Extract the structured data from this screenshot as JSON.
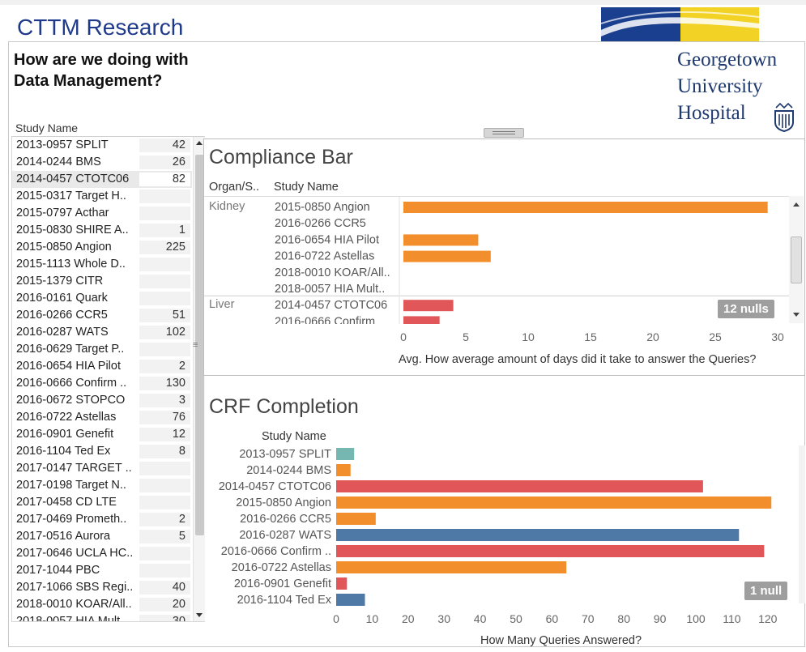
{
  "header": {
    "title": "CTTM Research",
    "question": "How are we doing with Data Management?",
    "logo_lines": [
      "Georgetown",
      "University",
      "Hospital"
    ]
  },
  "colors": {
    "orange": "#f28e2b",
    "red": "#e15759",
    "blue": "#4e79a7",
    "teal": "#76b7b2",
    "brand_navy": "#1f3a8a"
  },
  "study_list": {
    "header": "Study Name",
    "rows": [
      {
        "name": "2013-0957 SPLIT",
        "count": "42"
      },
      {
        "name": "2014-0244 BMS",
        "count": "26"
      },
      {
        "name": "2014-0457 CTOTC06",
        "count": "82"
      },
      {
        "name": "2015-0317 Target H..",
        "count": ""
      },
      {
        "name": "2015-0797 Acthar",
        "count": ""
      },
      {
        "name": "2015-0830 SHIRE A..",
        "count": "1"
      },
      {
        "name": "2015-0850 Angion",
        "count": "225"
      },
      {
        "name": "2015-1113 Whole D..",
        "count": ""
      },
      {
        "name": "2015-1379 CITR",
        "count": ""
      },
      {
        "name": "2016-0161 Quark",
        "count": ""
      },
      {
        "name": "2016-0266 CCR5",
        "count": "51"
      },
      {
        "name": "2016-0287 WATS",
        "count": "102"
      },
      {
        "name": "2016-0629 Target P..",
        "count": ""
      },
      {
        "name": "2016-0654 HIA Pilot",
        "count": "2"
      },
      {
        "name": "2016-0666 Confirm ..",
        "count": "130"
      },
      {
        "name": "2016-0672 STOPCO",
        "count": "3"
      },
      {
        "name": "2016-0722 Astellas",
        "count": "76"
      },
      {
        "name": "2016-0901 Genefit",
        "count": "12"
      },
      {
        "name": "2016-1104 Ted Ex",
        "count": "8"
      },
      {
        "name": "2017-0147 TARGET ..",
        "count": ""
      },
      {
        "name": "2017-0198 Target N..",
        "count": ""
      },
      {
        "name": "2017-0458 CD LTE",
        "count": ""
      },
      {
        "name": "2017-0469 Prometh..",
        "count": "2"
      },
      {
        "name": "2017-0516 Aurora",
        "count": "5"
      },
      {
        "name": "2017-0646 UCLA HC..",
        "count": ""
      },
      {
        "name": "2017-1044  PBC",
        "count": ""
      },
      {
        "name": "2017-1066 SBS Regi..",
        "count": "40"
      },
      {
        "name": "2018-0010 KOAR/All..",
        "count": "20"
      },
      {
        "name": "2018-0057 HIA Mult..",
        "count": "30"
      }
    ]
  },
  "compliance": {
    "title": "Compliance Bar",
    "col_headers": [
      "Organ/S..",
      "Study Name"
    ],
    "null_badge": "12 nulls",
    "axis_title": "Avg. How average amount of days did it take to answer the Queries?",
    "chart_data": {
      "type": "bar",
      "orientation": "horizontal",
      "xlim": [
        0,
        30
      ],
      "ticks": [
        "0",
        "5",
        "10",
        "15",
        "20",
        "25",
        "30"
      ],
      "groups": [
        {
          "name": "Kidney",
          "rows": [
            {
              "study": "2015-0850 Angion",
              "value": 29.2,
              "color": "orange"
            },
            {
              "study": "2016-0266 CCR5",
              "value": null,
              "color": "orange"
            },
            {
              "study": "2016-0654 HIA Pilot",
              "value": 6.0,
              "color": "orange"
            },
            {
              "study": "2016-0722 Astellas",
              "value": 7.0,
              "color": "orange"
            },
            {
              "study": "2018-0010 KOAR/All..",
              "value": null,
              "color": "orange"
            },
            {
              "study": "2018-0057 HIA Mult..",
              "value": null,
              "color": "orange"
            }
          ]
        },
        {
          "name": "Liver",
          "rows": [
            {
              "study": "2014-0457 CTOTC06",
              "value": 4.0,
              "color": "red"
            },
            {
              "study": "2016-0666 Confirm",
              "value": 2.9,
              "color": "red"
            }
          ]
        }
      ]
    }
  },
  "crf": {
    "title": "CRF Completion",
    "col_header": "Study Name",
    "null_badge": "1 null",
    "axis_title": "How Many Queries Answered?",
    "chart_data": {
      "type": "bar",
      "orientation": "horizontal",
      "xlim": [
        0,
        125
      ],
      "ticks": [
        "0",
        "10",
        "20",
        "30",
        "40",
        "50",
        "60",
        "70",
        "80",
        "90",
        "100",
        "110",
        "120"
      ],
      "categories": [
        "2013-0957 SPLIT",
        "2014-0244 BMS",
        "2014-0457 CTOTC06",
        "2015-0850 Angion",
        "2016-0266 CCR5",
        "2016-0287 WATS",
        "2016-0666 Confirm ..",
        "2016-0722 Astellas",
        "2016-0901 Genefit",
        "2016-1104 Ted Ex"
      ],
      "values": [
        5,
        4,
        102,
        121,
        11,
        112,
        119,
        64,
        3,
        8
      ],
      "colors": [
        "teal",
        "orange",
        "red",
        "orange",
        "orange",
        "blue",
        "red",
        "orange",
        "red",
        "blue"
      ]
    }
  }
}
